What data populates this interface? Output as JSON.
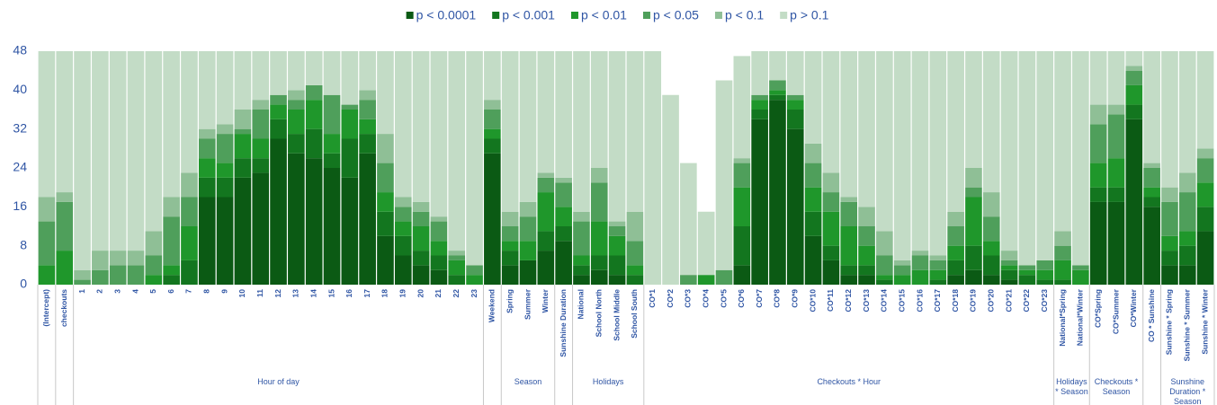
{
  "chart_data": {
    "type": "stacked_bar",
    "categories": [
      "(Intercept)",
      "checkouts",
      "1",
      "2",
      "3",
      "4",
      "5",
      "6",
      "7",
      "8",
      "9",
      "10",
      "11",
      "12",
      "13",
      "14",
      "15",
      "16",
      "17",
      "18",
      "19",
      "20",
      "21",
      "22",
      "23",
      "Weekend",
      "Spring",
      "Summer",
      "Winter",
      "Sunshine Duration",
      "National",
      "School North",
      "School Middle",
      "School South",
      "CO*1",
      "CO*2",
      "CO*3",
      "CO*4",
      "CO*5",
      "CO*6",
      "CO*7",
      "CO*8",
      "CO*9",
      "CO*10",
      "CO*11",
      "CO*12",
      "CO*13",
      "CO*14",
      "CO*15",
      "CO*16",
      "CO*17",
      "CO*18",
      "CO*19",
      "CO*20",
      "CO*21",
      "CO*22",
      "CO*23",
      "National*Spring",
      "National*Winter",
      "CO*Spring",
      "CO*Summer",
      "CO*Winter",
      "CO * Sunshine",
      "Sunshine * Spring",
      "Sunshine * Summer",
      "Sunshine * Winter"
    ],
    "group_labels": [
      null,
      null,
      "Hour of day",
      null,
      "Season",
      null,
      "Holidays",
      "Checkouts * Hour",
      "Holidays * Season",
      "Checkouts * Season",
      null,
      "Sunshine Duration * Season"
    ],
    "series": [
      {
        "name": "p < 0.0001",
        "color": "#0b5a14",
        "values": [
          0,
          0,
          0,
          0,
          0,
          0,
          0,
          0,
          0,
          18,
          18,
          22,
          23,
          30,
          27,
          26,
          24,
          22,
          27,
          10,
          6,
          4,
          3,
          0,
          0,
          27,
          4,
          5,
          7,
          9,
          2,
          3,
          2,
          0,
          0,
          0,
          0,
          0,
          0,
          4,
          34,
          38,
          32,
          10,
          5,
          2,
          2,
          0,
          0,
          0,
          0,
          2,
          3,
          2,
          1,
          0,
          0,
          0,
          0,
          17,
          17,
          34,
          16,
          4,
          4,
          11
        ]
      },
      {
        "name": "p < 0.001",
        "color": "#13761f",
        "values": [
          0,
          0,
          0,
          0,
          0,
          0,
          0,
          2,
          5,
          4,
          4,
          4,
          3,
          4,
          4,
          6,
          3,
          8,
          4,
          5,
          4,
          3,
          3,
          2,
          0,
          3,
          3,
          0,
          4,
          3,
          2,
          3,
          4,
          2,
          0,
          0,
          0,
          0,
          0,
          8,
          2,
          1,
          4,
          5,
          3,
          2,
          2,
          1,
          0,
          0,
          1,
          3,
          5,
          4,
          2,
          2,
          1,
          1,
          0,
          3,
          3,
          3,
          2,
          3,
          4,
          5
        ]
      },
      {
        "name": "p < 0.01",
        "color": "#1f972b",
        "values": [
          4,
          7,
          0,
          0,
          0,
          0,
          2,
          2,
          7,
          4,
          3,
          5,
          4,
          3,
          5,
          6,
          4,
          6,
          3,
          4,
          3,
          5,
          3,
          3,
          2,
          2,
          2,
          4,
          8,
          4,
          2,
          7,
          4,
          2,
          0,
          0,
          0,
          2,
          0,
          8,
          2,
          1,
          2,
          5,
          7,
          8,
          4,
          1,
          2,
          3,
          2,
          3,
          10,
          3,
          1,
          1,
          2,
          4,
          3,
          5,
          6,
          4,
          2,
          3,
          3,
          5
        ]
      },
      {
        "name": "p < 0.05",
        "color": "#4f9f5b",
        "values": [
          9,
          10,
          1,
          3,
          4,
          4,
          4,
          10,
          6,
          4,
          6,
          1,
          6,
          2,
          2,
          3,
          8,
          1,
          4,
          6,
          3,
          3,
          4,
          1,
          2,
          4,
          3,
          5,
          3,
          5,
          7,
          8,
          2,
          5,
          0,
          0,
          2,
          0,
          3,
          5,
          1,
          2,
          1,
          5,
          4,
          5,
          4,
          4,
          2,
          3,
          2,
          4,
          2,
          5,
          1,
          1,
          2,
          3,
          1,
          8,
          9,
          3,
          4,
          7,
          8,
          5
        ]
      },
      {
        "name": "p < 0.1",
        "color": "#8fbf96",
        "values": [
          5,
          2,
          2,
          4,
          3,
          3,
          5,
          4,
          5,
          2,
          2,
          4,
          2,
          0,
          2,
          0,
          0,
          0,
          2,
          6,
          2,
          2,
          1,
          1,
          0,
          2,
          3,
          3,
          1,
          1,
          2,
          3,
          1,
          6,
          0,
          0,
          0,
          0,
          0,
          1,
          0,
          0,
          0,
          4,
          4,
          1,
          4,
          5,
          1,
          1,
          1,
          3,
          4,
          5,
          2,
          0,
          0,
          3,
          0,
          4,
          2,
          1,
          1,
          3,
          4,
          2
        ]
      },
      {
        "name": "p > 0.1",
        "color": "#c3dcc6",
        "values": [
          30,
          29,
          45,
          41,
          41,
          41,
          37,
          30,
          25,
          16,
          15,
          12,
          10,
          9,
          8,
          7,
          9,
          11,
          8,
          17,
          30,
          31,
          34,
          41,
          44,
          10,
          33,
          31,
          25,
          26,
          33,
          24,
          35,
          33,
          48,
          39,
          23,
          13,
          39,
          21,
          9,
          6,
          9,
          19,
          25,
          30,
          32,
          37,
          43,
          41,
          42,
          33,
          24,
          29,
          41,
          44,
          43,
          37,
          44,
          11,
          11,
          3,
          23,
          28,
          25,
          20
        ]
      }
    ],
    "ylim": [
      0,
      48
    ],
    "yticks": [
      0,
      8,
      16,
      24,
      32,
      40,
      48
    ],
    "legend": "top",
    "grid": false
  }
}
